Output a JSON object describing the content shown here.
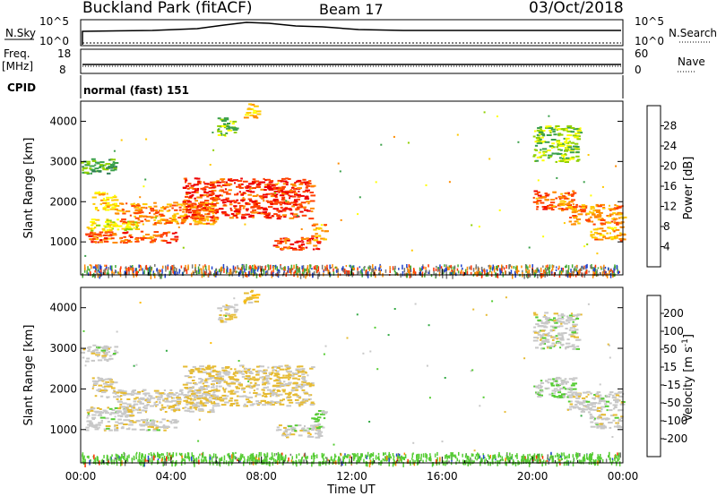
{
  "header": {
    "station": "Buckland Park (fitACF)",
    "beam": "Beam 17",
    "date": "03/Oct/2018"
  },
  "panel_labels": {
    "nsky": "N.Sky",
    "nsky_ticks": [
      "10^5",
      "10^0"
    ],
    "nsearch": "N.Search",
    "nsearch_ticks": [
      "10^5",
      "10^0"
    ],
    "freq": "Freq.",
    "freq_unit": "[MHz]",
    "freq_ticks": [
      "18",
      "8"
    ],
    "nave": "Nave",
    "nave_ticks": [
      "60",
      "0"
    ],
    "cpid": "CPID",
    "cpid_value": "normal (fast) 151"
  },
  "colors": {
    "power": [
      "#0000ff",
      "#1f4fd0",
      "#2e7d56",
      "#3aa04a",
      "#8fd000",
      "#ffff00",
      "#ffc800",
      "#ff8c00",
      "#ff4000",
      "#ee0000"
    ],
    "velocity": [
      "#ff0000",
      "#ff5500",
      "#ff9900",
      "#ffbb00",
      "#e6bb33",
      "#c8c8c8",
      "#55cc33",
      "#33aa44",
      "#2e7d56",
      "#1f4fd0",
      "#2a2a8a"
    ],
    "ground": [
      "#44aa33",
      "#ff8800",
      "#2244cc",
      "#ff3300",
      "#777777"
    ]
  },
  "chart_data": [
    {
      "type": "heatmap",
      "name": "power",
      "xlabel": "",
      "ylabel": "Slant Range [km]",
      "x_ticks": [
        "00:00",
        "04:00",
        "08:00",
        "12:00",
        "16:00",
        "20:00",
        "00:00"
      ],
      "y_ticks": [
        "1000",
        "2000",
        "3000",
        "4000"
      ],
      "xlim": [
        0,
        24
      ],
      "ylim": [
        180,
        4500
      ],
      "colorbar": {
        "label": "Power [dB]",
        "ticks": [
          "4",
          "8",
          "12",
          "16",
          "20",
          "24",
          "28"
        ],
        "range": [
          0,
          32
        ]
      },
      "regions": [
        {
          "t": [
            0.2,
            4.2
          ],
          "r": [
            1000,
            1280
          ],
          "value": 26
        },
        {
          "t": [
            0.2,
            2.5
          ],
          "r": [
            1300,
            1600
          ],
          "value": 18
        },
        {
          "t": [
            1.5,
            6.0
          ],
          "r": [
            1450,
            2000
          ],
          "value": 24
        },
        {
          "t": [
            4.5,
            10.2
          ],
          "r": [
            1600,
            2600
          ],
          "value": 28
        },
        {
          "t": [
            8.5,
            10.5
          ],
          "r": [
            820,
            1130
          ],
          "value": 28
        },
        {
          "t": [
            10.2,
            10.8
          ],
          "r": [
            1050,
            1500
          ],
          "value": 22
        },
        {
          "t": [
            0.5,
            1.5
          ],
          "r": [
            1800,
            2300
          ],
          "value": 20
        },
        {
          "t": [
            0.0,
            1.5
          ],
          "r": [
            2700,
            3100
          ],
          "value": 12
        },
        {
          "t": [
            6.0,
            6.8
          ],
          "r": [
            3650,
            4100
          ],
          "value": 14
        },
        {
          "t": [
            7.2,
            7.8
          ],
          "r": [
            4100,
            4450
          ],
          "value": 20
        },
        {
          "t": [
            20.0,
            21.8
          ],
          "r": [
            1800,
            2300
          ],
          "value": 26
        },
        {
          "t": [
            21.5,
            24.0
          ],
          "r": [
            1450,
            1950
          ],
          "value": 24
        },
        {
          "t": [
            22.5,
            24.0
          ],
          "r": [
            1050,
            1400
          ],
          "value": 22
        },
        {
          "t": [
            20.0,
            22.0
          ],
          "r": [
            3000,
            3900
          ],
          "value": 14
        }
      ],
      "ground_scatter_band": [
        200,
        450
      ]
    },
    {
      "type": "heatmap",
      "name": "velocity",
      "xlabel": "Time UT",
      "ylabel": "Slant Range [km]",
      "x_ticks": [
        "00:00",
        "04:00",
        "08:00",
        "12:00",
        "16:00",
        "20:00",
        "00:00"
      ],
      "y_ticks": [
        "1000",
        "2000",
        "3000",
        "4000"
      ],
      "xlim": [
        0,
        24
      ],
      "ylim": [
        180,
        4500
      ],
      "colorbar": {
        "label": "Velocity [m s^-1]",
        "ticks": [
          "-200",
          "-100",
          "-50",
          "-15",
          "15",
          "50",
          "100",
          "200"
        ],
        "range": [
          -250,
          250
        ]
      },
      "regions": [
        {
          "t": [
            0.2,
            4.2
          ],
          "r": [
            1000,
            1280
          ],
          "value": 0
        },
        {
          "t": [
            0.2,
            2.5
          ],
          "r": [
            1300,
            1600
          ],
          "value": 0
        },
        {
          "t": [
            1.5,
            6.0
          ],
          "r": [
            1450,
            2000
          ],
          "value": -10
        },
        {
          "t": [
            4.5,
            10.2
          ],
          "r": [
            1600,
            2600
          ],
          "value": -30
        },
        {
          "t": [
            8.5,
            10.5
          ],
          "r": [
            820,
            1130
          ],
          "value": 0
        },
        {
          "t": [
            10.2,
            10.8
          ],
          "r": [
            1050,
            1500
          ],
          "value": 30
        },
        {
          "t": [
            0.5,
            1.5
          ],
          "r": [
            1800,
            2300
          ],
          "value": -10
        },
        {
          "t": [
            0.0,
            1.5
          ],
          "r": [
            2700,
            3100
          ],
          "value": 0
        },
        {
          "t": [
            6.0,
            6.8
          ],
          "r": [
            3650,
            4100
          ],
          "value": -20
        },
        {
          "t": [
            7.2,
            7.8
          ],
          "r": [
            4100,
            4450
          ],
          "value": -40
        },
        {
          "t": [
            20.0,
            21.8
          ],
          "r": [
            1800,
            2300
          ],
          "value": 10
        },
        {
          "t": [
            21.5,
            24.0
          ],
          "r": [
            1450,
            1950
          ],
          "value": 0
        },
        {
          "t": [
            22.5,
            24.0
          ],
          "r": [
            1050,
            1400
          ],
          "value": 0
        },
        {
          "t": [
            20.0,
            22.0
          ],
          "r": [
            3000,
            3900
          ],
          "value": 0
        }
      ],
      "ground_scatter_band": [
        200,
        450
      ]
    }
  ]
}
